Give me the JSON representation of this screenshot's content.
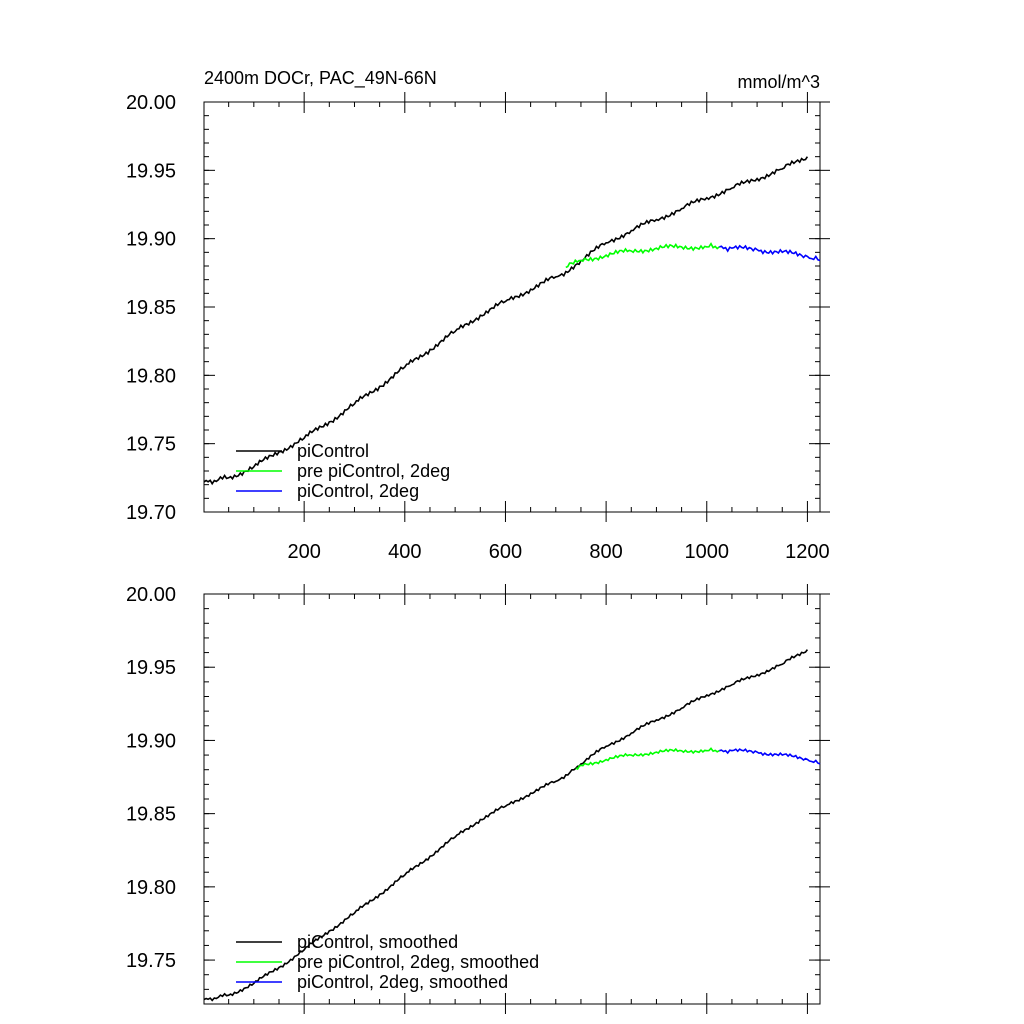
{
  "chart_data": [
    {
      "type": "line",
      "title": "2400m DOCr, PAC_49N-66N",
      "units": "mmol/m^3",
      "xlim": [
        1,
        1225
      ],
      "ylim": [
        19.7,
        20.0
      ],
      "xticks": [
        200,
        400,
        600,
        800,
        1000,
        1200
      ],
      "xtick_labels": [
        "200",
        "400",
        "600",
        "800",
        "1000",
        "1200"
      ],
      "yticks": [
        19.7,
        19.75,
        19.8,
        19.85,
        19.9,
        19.95,
        20.0
      ],
      "ytick_labels": [
        "19.70",
        "19.75",
        "19.80",
        "19.85",
        "19.90",
        "19.95",
        "20.00"
      ],
      "legend": "bottom-left",
      "series": [
        {
          "name": "piControl",
          "color": "#000000",
          "x": [
            1,
            50,
            100,
            150,
            200,
            250,
            300,
            350,
            400,
            450,
            500,
            550,
            600,
            650,
            700,
            720,
            750,
            800,
            850,
            900,
            950,
            1000,
            1050,
            1100,
            1150,
            1200
          ],
          "y": [
            19.722,
            19.725,
            19.733,
            19.744,
            19.754,
            19.766,
            19.779,
            19.792,
            19.806,
            19.819,
            19.832,
            19.844,
            19.854,
            19.863,
            19.872,
            19.876,
            19.884,
            19.897,
            19.906,
            19.914,
            19.922,
            19.93,
            19.937,
            19.944,
            19.951,
            19.96
          ]
        },
        {
          "name": "pre piControl, 2deg",
          "color": "#00ff00",
          "x": [
            720,
            750,
            800,
            850,
            900,
            950,
            1000,
            1025
          ],
          "y": [
            19.879,
            19.884,
            19.888,
            19.891,
            19.893,
            19.894,
            19.894,
            19.894
          ]
        },
        {
          "name": "piControl, 2deg",
          "color": "#0000ff",
          "x": [
            1025,
            1050,
            1100,
            1150,
            1200,
            1225
          ],
          "y": [
            19.894,
            19.893,
            19.892,
            19.89,
            19.887,
            19.884
          ]
        }
      ]
    },
    {
      "type": "line",
      "xlim": [
        1,
        1225
      ],
      "ylim": [
        19.72,
        20.0
      ],
      "xticks": [
        200,
        400,
        600,
        800,
        1000,
        1200
      ],
      "yticks": [
        19.75,
        19.8,
        19.85,
        19.9,
        19.95,
        20.0
      ],
      "ytick_labels": [
        "19.75",
        "19.80",
        "19.85",
        "19.90",
        "19.95",
        "20.00"
      ],
      "legend": "bottom-left",
      "series": [
        {
          "name": "piControl, smoothed",
          "color": "#000000",
          "x": [
            1,
            50,
            100,
            150,
            200,
            250,
            300,
            350,
            400,
            450,
            500,
            550,
            600,
            650,
            700,
            740,
            750,
            800,
            850,
            900,
            950,
            1000,
            1050,
            1100,
            1150,
            1200
          ],
          "y": [
            19.723,
            19.726,
            19.734,
            19.745,
            19.757,
            19.77,
            19.782,
            19.795,
            19.808,
            19.821,
            19.834,
            19.846,
            19.855,
            19.864,
            19.872,
            19.881,
            19.884,
            19.896,
            19.905,
            19.914,
            19.922,
            19.931,
            19.938,
            19.945,
            19.952,
            19.962
          ]
        },
        {
          "name": "pre piControl, 2deg, smoothed",
          "color": "#00ff00",
          "x": [
            740,
            750,
            800,
            850,
            900,
            950,
            1000,
            1025
          ],
          "y": [
            19.881,
            19.883,
            19.887,
            19.89,
            19.892,
            19.893,
            19.893,
            19.893
          ]
        },
        {
          "name": "piControl, 2deg, smoothed",
          "color": "#0000ff",
          "x": [
            1025,
            1050,
            1100,
            1150,
            1200,
            1225
          ],
          "y": [
            19.893,
            19.893,
            19.892,
            19.89,
            19.887,
            19.884
          ]
        }
      ]
    }
  ]
}
